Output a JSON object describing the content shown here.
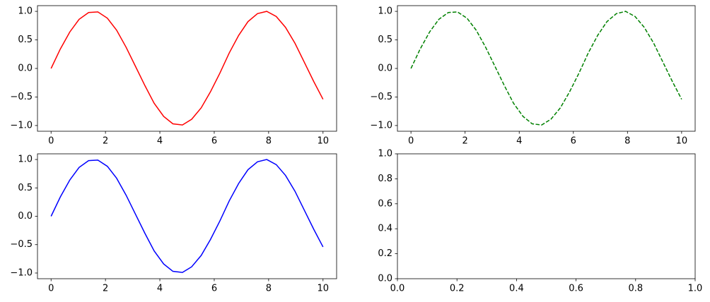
{
  "chart_data": [
    {
      "type": "line",
      "xlim": [
        -0.5,
        10.5
      ],
      "ylim": [
        -1.1,
        1.1
      ],
      "xticks": [
        0,
        2,
        4,
        6,
        8,
        10
      ],
      "yticks": [
        {
          "value": -1,
          "label": "−1.0"
        },
        {
          "value": -0.5,
          "label": "−0.5"
        },
        {
          "value": 0,
          "label": "0.0"
        },
        {
          "value": 0.5,
          "label": "0.5"
        },
        {
          "value": 1,
          "label": "1.0"
        }
      ],
      "x": [
        0,
        0.34,
        0.69,
        1.03,
        1.38,
        1.72,
        2.07,
        2.41,
        2.76,
        3.1,
        3.45,
        3.79,
        4.14,
        4.48,
        4.83,
        5.17,
        5.52,
        5.86,
        6.21,
        6.55,
        6.9,
        7.24,
        7.59,
        7.93,
        8.28,
        8.62,
        8.97,
        9.31,
        9.66,
        10
      ],
      "series": [
        {
          "color": "#ff0000",
          "linestyle": "solid",
          "values": [
            0,
            0.34,
            0.64,
            0.86,
            0.98,
            0.99,
            0.88,
            0.67,
            0.37,
            0.04,
            -0.3,
            -0.61,
            -0.84,
            -0.97,
            -0.99,
            -0.89,
            -0.69,
            -0.41,
            -0.08,
            0.27,
            0.58,
            0.82,
            0.96,
            1.0,
            0.91,
            0.72,
            0.44,
            0.11,
            -0.23,
            -0.54
          ]
        }
      ]
    },
    {
      "type": "line",
      "xlim": [
        -0.5,
        10.5
      ],
      "ylim": [
        -1.1,
        1.1
      ],
      "xticks": [
        0,
        2,
        4,
        6,
        8,
        10
      ],
      "yticks": [
        {
          "value": -1,
          "label": "−1.0"
        },
        {
          "value": -0.5,
          "label": "−0.5"
        },
        {
          "value": 0,
          "label": "0.0"
        },
        {
          "value": 0.5,
          "label": "0.5"
        },
        {
          "value": 1,
          "label": "1.0"
        }
      ],
      "x": [
        0,
        0.34,
        0.69,
        1.03,
        1.38,
        1.72,
        2.07,
        2.41,
        2.76,
        3.1,
        3.45,
        3.79,
        4.14,
        4.48,
        4.83,
        5.17,
        5.52,
        5.86,
        6.21,
        6.55,
        6.9,
        7.24,
        7.59,
        7.93,
        8.28,
        8.62,
        8.97,
        9.31,
        9.66,
        10
      ],
      "series": [
        {
          "color": "#008000",
          "linestyle": "dashed",
          "values": [
            0,
            0.34,
            0.64,
            0.86,
            0.98,
            0.99,
            0.88,
            0.67,
            0.37,
            0.04,
            -0.3,
            -0.61,
            -0.84,
            -0.97,
            -0.99,
            -0.89,
            -0.69,
            -0.41,
            -0.08,
            0.27,
            0.58,
            0.82,
            0.96,
            1.0,
            0.91,
            0.72,
            0.44,
            0.11,
            -0.23,
            -0.54
          ]
        }
      ]
    },
    {
      "type": "line",
      "xlim": [
        -0.5,
        10.5
      ],
      "ylim": [
        -1.1,
        1.1
      ],
      "xticks": [
        0,
        2,
        4,
        6,
        8,
        10
      ],
      "yticks": [
        {
          "value": -1,
          "label": "−1.0"
        },
        {
          "value": -0.5,
          "label": "−0.5"
        },
        {
          "value": 0,
          "label": "0.0"
        },
        {
          "value": 0.5,
          "label": "0.5"
        },
        {
          "value": 1,
          "label": "1.0"
        }
      ],
      "x": [
        0,
        0.34,
        0.69,
        1.03,
        1.38,
        1.72,
        2.07,
        2.41,
        2.76,
        3.1,
        3.45,
        3.79,
        4.14,
        4.48,
        4.83,
        5.17,
        5.52,
        5.86,
        6.21,
        6.55,
        6.9,
        7.24,
        7.59,
        7.93,
        8.28,
        8.62,
        8.97,
        9.31,
        9.66,
        10
      ],
      "series": [
        {
          "color": "#0000ff",
          "linestyle": "solid",
          "values": [
            0,
            0.34,
            0.64,
            0.86,
            0.98,
            0.99,
            0.88,
            0.67,
            0.37,
            0.04,
            -0.3,
            -0.61,
            -0.84,
            -0.97,
            -0.99,
            -0.89,
            -0.69,
            -0.41,
            -0.08,
            0.27,
            0.58,
            0.82,
            0.96,
            1.0,
            0.91,
            0.72,
            0.44,
            0.11,
            -0.23,
            -0.54
          ]
        }
      ]
    },
    {
      "type": "line",
      "xlim": [
        0,
        1
      ],
      "ylim": [
        0,
        1
      ],
      "xticks": [
        {
          "value": 0,
          "label": "0.0"
        },
        {
          "value": 0.2,
          "label": "0.2"
        },
        {
          "value": 0.4,
          "label": "0.4"
        },
        {
          "value": 0.6,
          "label": "0.6"
        },
        {
          "value": 0.8,
          "label": "0.8"
        },
        {
          "value": 1,
          "label": "1.0"
        }
      ],
      "yticks": [
        {
          "value": 0,
          "label": "0.0"
        },
        {
          "value": 0.2,
          "label": "0.2"
        },
        {
          "value": 0.4,
          "label": "0.4"
        },
        {
          "value": 0.6,
          "label": "0.6"
        },
        {
          "value": 0.8,
          "label": "0.8"
        },
        {
          "value": 1,
          "label": "1.0"
        }
      ],
      "series": []
    }
  ]
}
